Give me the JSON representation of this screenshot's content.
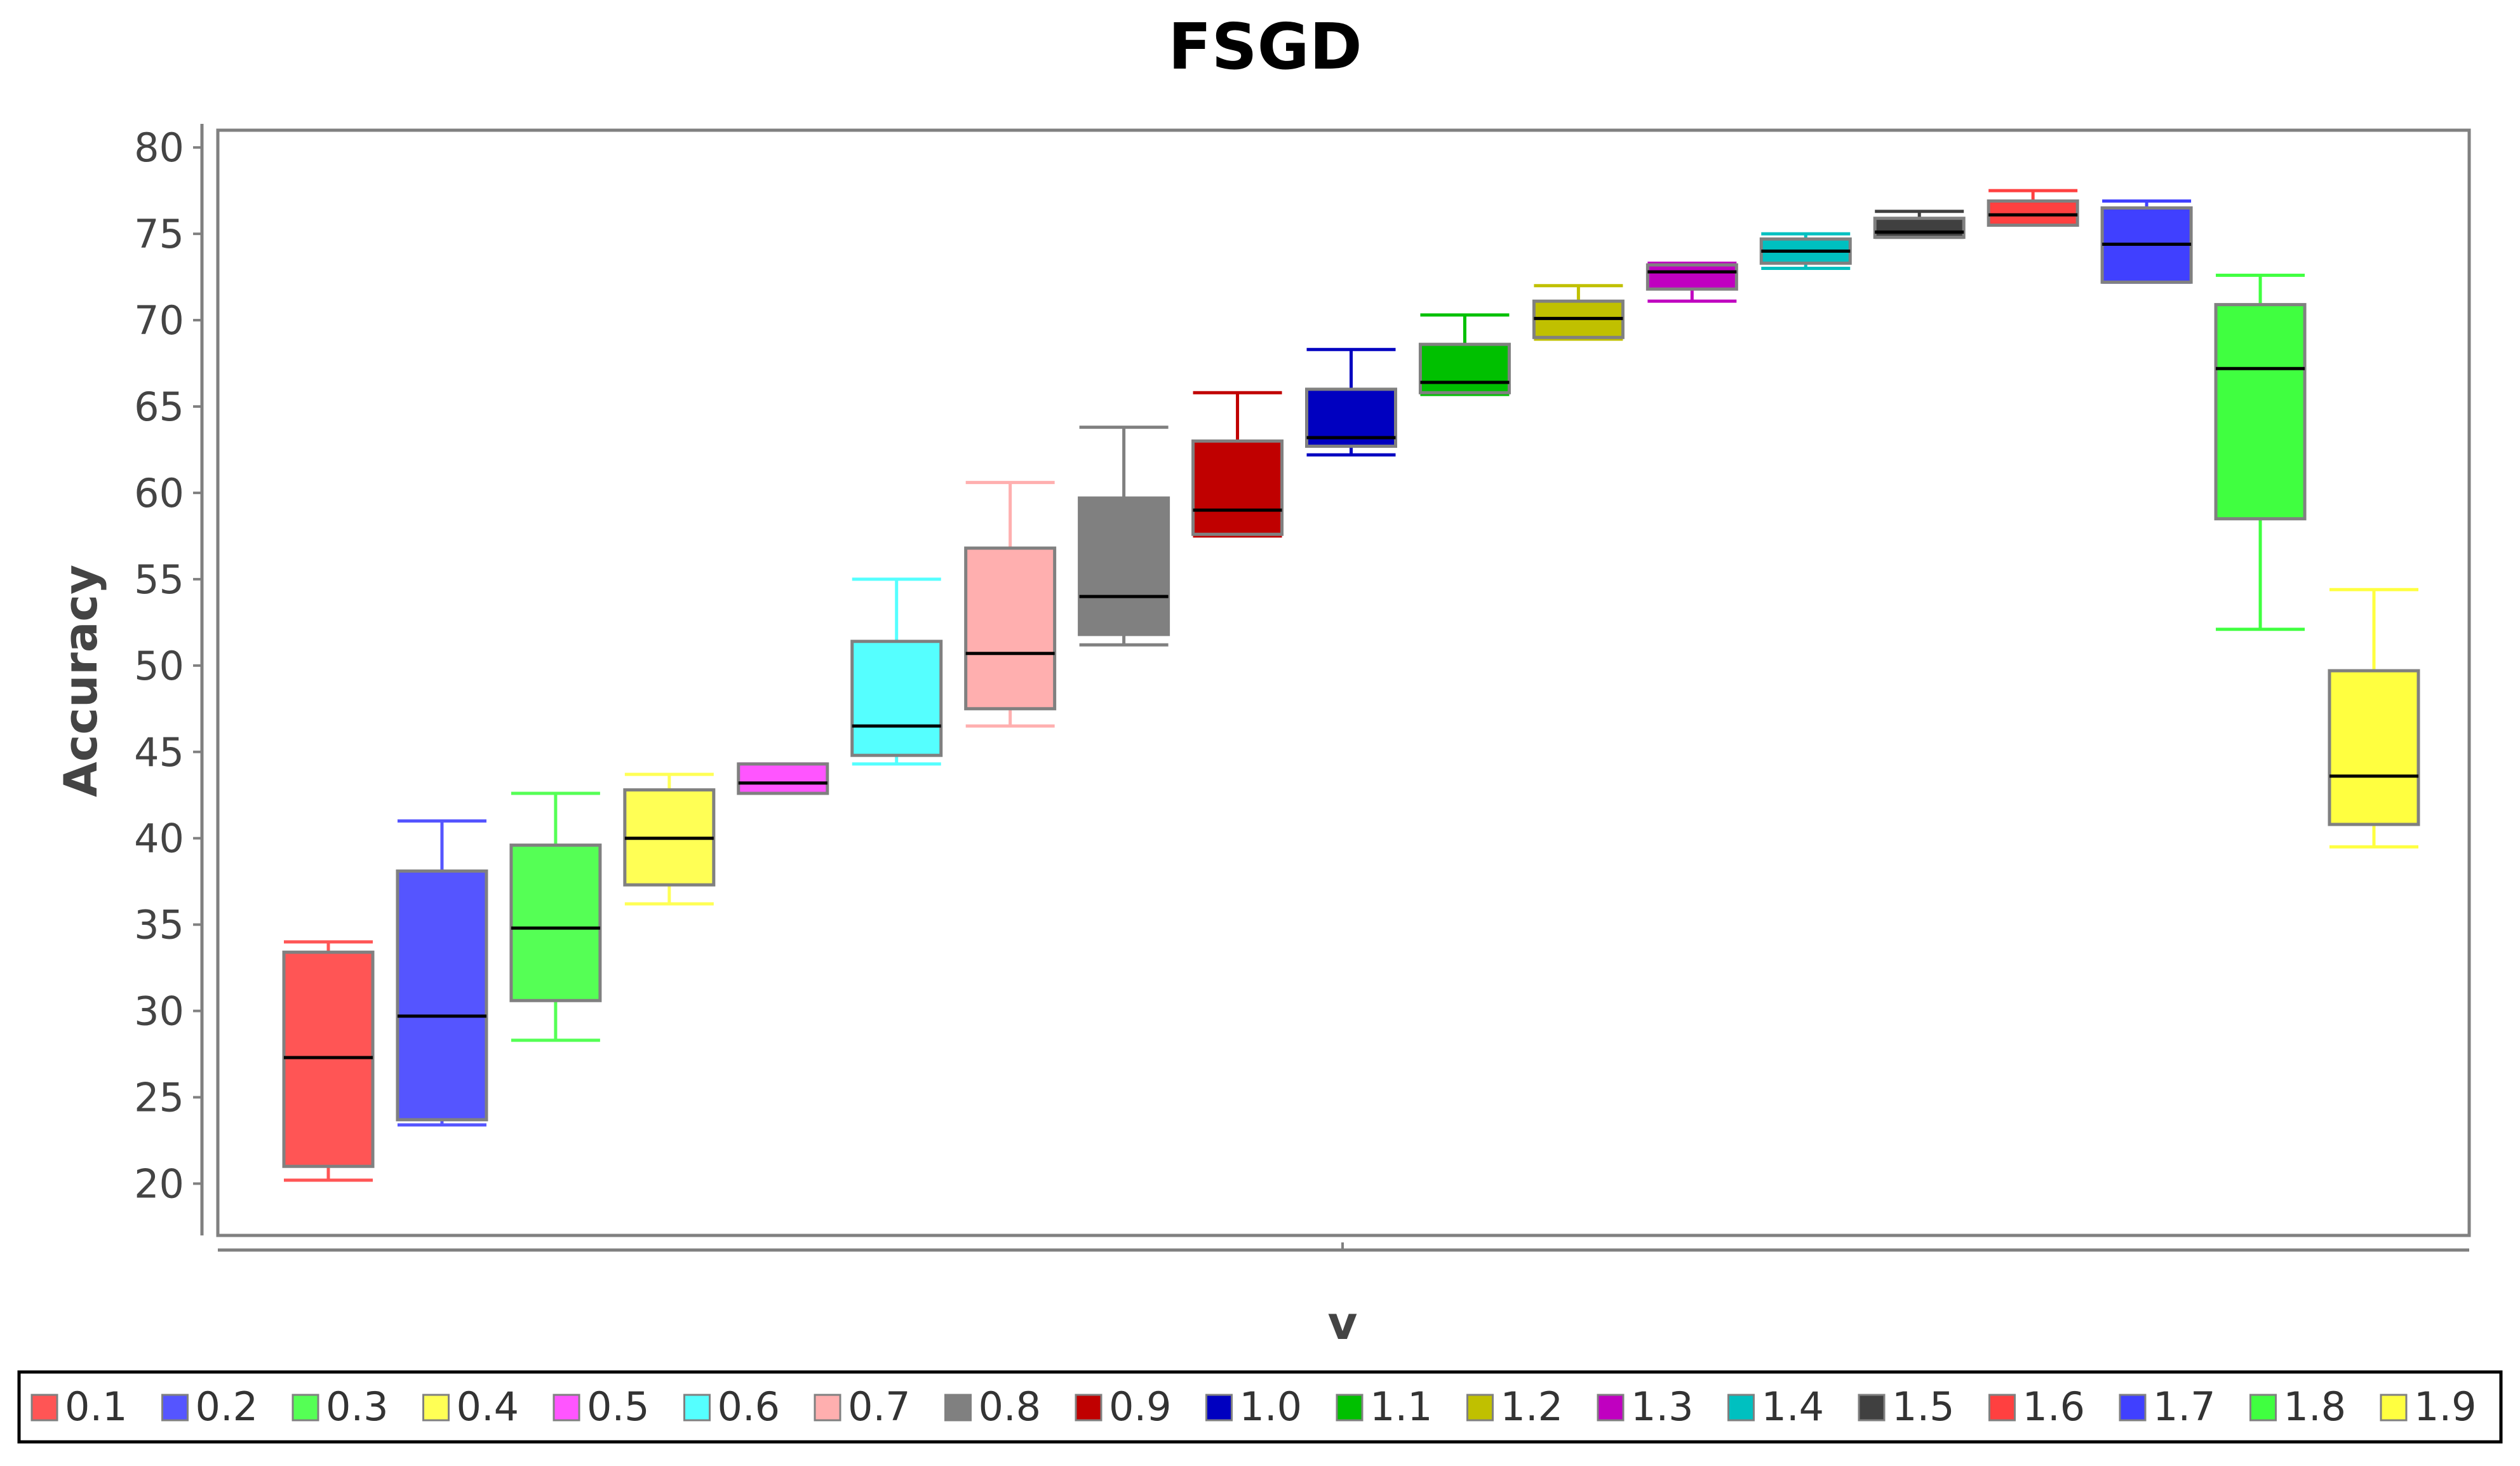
{
  "chart_data": {
    "type": "boxplot",
    "title": "FSGD",
    "xlabel": "v",
    "ylabel": "Accuracy",
    "ylim": [
      17,
      81
    ],
    "yticks": [
      20,
      25,
      30,
      35,
      40,
      45,
      50,
      55,
      60,
      65,
      70,
      75,
      80
    ],
    "grid": false,
    "legend_position": "bottom",
    "series": [
      {
        "name": "0.1",
        "color": "#ff5555",
        "min": 20.2,
        "q1": 21.0,
        "median": 27.3,
        "q3": 33.4,
        "max": 34.0
      },
      {
        "name": "0.2",
        "color": "#5555ff",
        "min": 23.4,
        "q1": 23.7,
        "median": 29.7,
        "q3": 38.1,
        "max": 41.0
      },
      {
        "name": "0.3",
        "color": "#55ff55",
        "min": 28.3,
        "q1": 30.6,
        "median": 34.8,
        "q3": 39.6,
        "max": 42.6
      },
      {
        "name": "0.4",
        "color": "#ffff55",
        "min": 36.2,
        "q1": 37.3,
        "median": 40.0,
        "q3": 42.8,
        "max": 43.7
      },
      {
        "name": "0.5",
        "color": "#ff55ff",
        "min": 42.6,
        "q1": 42.6,
        "median": 43.2,
        "q3": 44.3,
        "max": 44.3
      },
      {
        "name": "0.6",
        "color": "#55ffff",
        "min": 44.3,
        "q1": 44.8,
        "median": 46.5,
        "q3": 51.4,
        "max": 55.0
      },
      {
        "name": "0.7",
        "color": "#ffafaf",
        "min": 46.5,
        "q1": 47.5,
        "median": 50.7,
        "q3": 56.8,
        "max": 60.6
      },
      {
        "name": "0.8",
        "color": "#808080",
        "min": 51.2,
        "q1": 51.8,
        "median": 54.0,
        "q3": 59.7,
        "max": 63.8
      },
      {
        "name": "0.9",
        "color": "#c00000",
        "min": 57.5,
        "q1": 57.6,
        "median": 59.0,
        "q3": 63.0,
        "max": 65.8
      },
      {
        "name": "1.0",
        "color": "#0000c0",
        "min": 62.2,
        "q1": 62.7,
        "median": 63.2,
        "q3": 66.0,
        "max": 68.3
      },
      {
        "name": "1.1",
        "color": "#00c000",
        "min": 65.7,
        "q1": 65.8,
        "median": 66.4,
        "q3": 68.6,
        "max": 70.3
      },
      {
        "name": "1.2",
        "color": "#c0c000",
        "min": 68.9,
        "q1": 69.0,
        "median": 70.1,
        "q3": 71.1,
        "max": 72.0
      },
      {
        "name": "1.3",
        "color": "#c000c0",
        "min": 71.1,
        "q1": 71.8,
        "median": 72.8,
        "q3": 73.2,
        "max": 73.3
      },
      {
        "name": "1.4",
        "color": "#00c0c0",
        "min": 73.0,
        "q1": 73.3,
        "median": 74.0,
        "q3": 74.7,
        "max": 75.0
      },
      {
        "name": "1.5",
        "color": "#404040",
        "min": 74.8,
        "q1": 74.8,
        "median": 75.1,
        "q3": 75.9,
        "max": 76.3
      },
      {
        "name": "1.6",
        "color": "#ff4040",
        "min": 75.5,
        "q1": 75.5,
        "median": 76.1,
        "q3": 76.9,
        "max": 77.5
      },
      {
        "name": "1.7",
        "color": "#4040ff",
        "min": 72.2,
        "q1": 72.2,
        "median": 74.4,
        "q3": 76.5,
        "max": 76.9
      },
      {
        "name": "1.8",
        "color": "#40ff40",
        "min": 52.1,
        "q1": 58.5,
        "median": 67.2,
        "q3": 70.9,
        "max": 72.6
      },
      {
        "name": "1.9",
        "color": "#ffff40",
        "min": 39.5,
        "q1": 40.8,
        "median": 43.6,
        "q3": 49.7,
        "max": 54.4
      }
    ]
  }
}
